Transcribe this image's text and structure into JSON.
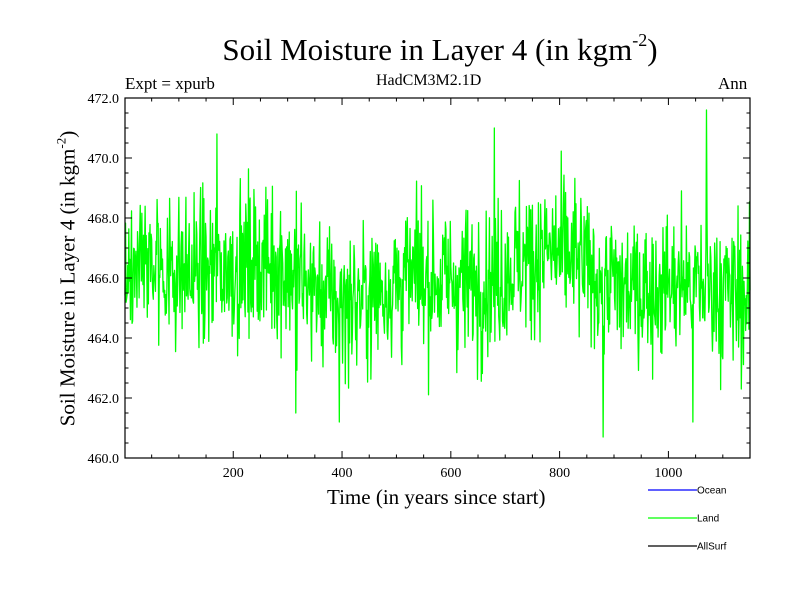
{
  "chart_data": {
    "type": "line",
    "title_main": "Soil Moisture in Layer 4 (in kgm",
    "title_sup": "-2",
    "title_end": ")",
    "subtitle_left": "Expt = xpurb",
    "subtitle_center": "HadCM3M2.1D",
    "subtitle_right": "Ann",
    "xlabel": "Time (in years since start)",
    "ylabel_main": "Soil Moisture in Layer 4 (in kgm",
    "ylabel_sup": "-2",
    "ylabel_end": ")",
    "xlim": [
      1,
      1150
    ],
    "ylim": [
      460.0,
      472.0
    ],
    "xticks": [
      200,
      400,
      600,
      800,
      1000
    ],
    "xtick_labels": [
      "200",
      "400",
      "600",
      "800",
      "1000"
    ],
    "yticks": [
      460.0,
      462.0,
      464.0,
      466.0,
      468.0,
      470.0,
      472.0
    ],
    "ytick_labels": [
      "460.0",
      "462.0",
      "464.0",
      "466.0",
      "468.0",
      "470.0",
      "472.0"
    ],
    "legend_position": "bottom-right, outside axes",
    "series": [
      {
        "name": "Ocean",
        "color": "#0000ff",
        "values": []
      },
      {
        "name": "Land",
        "color": "#00ff00",
        "mean": 466.0,
        "min": 460.7,
        "max": 471.6,
        "x_start": 1,
        "x_end": 1150,
        "notable_points": [
          [
            170,
            470.8
          ],
          [
            315,
            461.5
          ],
          [
            395,
            461.2
          ],
          [
            680,
            471.0
          ],
          [
            880,
            460.7
          ],
          [
            1045,
            461.2
          ],
          [
            1070,
            471.6
          ]
        ]
      },
      {
        "name": "AllSurf",
        "color": "#000000",
        "values": []
      }
    ]
  }
}
